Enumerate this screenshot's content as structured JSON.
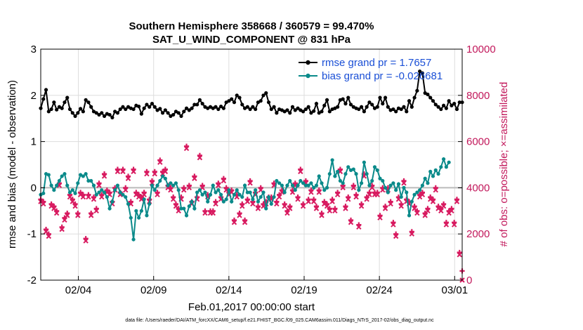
{
  "chart_data": {
    "type": "line",
    "title": "Southern Hemisphere 358668 / 360579 = 99.470%",
    "subtitle": "SAT_U_WIND_COMPONENT @ 831 hPa",
    "xlabel": "Feb.01,2017 00:00:00 start",
    "ylabel": "rmse and bias (model - observation)",
    "ylabel_right": "# of obs: o=possible; ×=assimilated",
    "footer": "data file: /Users/raeder/DAI/ATM_forcXX/CAM6_setup/f.e21.FHIST_BGC.f09_025.CAM6assim.011/Diags_NTrS_2017-02/obs_diag_output.nc",
    "xlim": [
      1,
      29
    ],
    "ylim": [
      -2,
      3
    ],
    "ylim_right": [
      0,
      10000
    ],
    "x_ticks": [
      3.5,
      8.5,
      13.5,
      18.5,
      23.5,
      28.5
    ],
    "x_tick_labels": [
      "02/04",
      "02/09",
      "02/14",
      "02/19",
      "02/24",
      "03/01"
    ],
    "y_ticks": [
      -2,
      -1,
      0,
      1,
      2,
      3
    ],
    "y_tick_labels": [
      "-2",
      "-1",
      "0",
      "1",
      "2",
      "3"
    ],
    "y_right_ticks": [
      0,
      2000,
      4000,
      6000,
      8000,
      10000
    ],
    "y_right_tick_labels": [
      "0",
      "2000",
      "4000",
      "6000",
      "8000",
      "10000"
    ],
    "grid": true,
    "legend_position": "top-right",
    "colors": {
      "rmse": "#000000",
      "bias": "#0a8a8a",
      "obs": "#d81b60",
      "zero": "#bbbbbb",
      "grid": "#dddddd"
    },
    "series": [
      {
        "name": "rmse grand pr = 1.7657",
        "values": [
          1.72,
          1.92,
          2.12,
          1.65,
          1.7,
          1.85,
          1.69,
          1.75,
          1.72,
          1.85,
          1.95,
          1.7,
          1.62,
          1.55,
          1.62,
          1.71,
          1.65,
          1.9,
          1.85,
          1.75,
          1.65,
          1.62,
          1.58,
          1.62,
          1.55,
          1.6,
          1.58,
          1.52,
          1.65,
          1.62,
          1.7,
          1.75,
          1.7,
          1.75,
          1.72,
          1.7,
          1.78,
          1.76,
          1.6,
          1.72,
          1.8,
          1.75,
          1.82,
          1.75,
          1.68,
          1.71,
          1.62,
          1.68,
          1.62,
          1.55,
          1.58,
          1.65,
          1.62,
          1.55,
          1.65,
          1.72,
          1.68,
          1.72,
          1.8,
          1.8,
          1.9,
          1.82,
          1.75,
          1.72,
          1.75,
          1.72,
          1.75,
          1.7,
          1.76,
          1.72,
          1.85,
          1.88,
          1.92,
          1.85,
          2.0,
          1.95,
          1.8,
          1.72,
          1.75,
          1.7,
          1.75,
          1.7,
          1.85,
          1.88,
          2.0,
          2.05,
          1.85,
          1.7,
          1.75,
          1.62,
          1.7,
          1.68,
          1.65,
          1.68,
          1.62,
          1.75,
          1.68,
          1.72,
          1.68,
          1.65,
          1.7,
          1.75,
          1.62,
          1.66,
          1.82,
          1.62,
          1.65,
          1.78,
          1.9,
          1.65,
          1.7,
          1.72,
          1.75,
          1.9,
          1.92,
          1.82,
          1.95,
          1.8,
          1.75,
          1.72,
          1.7,
          1.75,
          1.65,
          1.75,
          1.85,
          1.8,
          1.72,
          1.75,
          1.95,
          1.82,
          1.95,
          1.75,
          1.68,
          1.7,
          1.65,
          1.72,
          1.7,
          1.75,
          1.65,
          1.88,
          1.75,
          1.95,
          2.1,
          2.52,
          2.48,
          2.05,
          2.02,
          1.95,
          1.88,
          1.8,
          1.75,
          1.7,
          1.78,
          1.72,
          1.88,
          1.78,
          1.82,
          1.7,
          1.85,
          1.85
        ]
      },
      {
        "name": "bias grand pr = -0.026681",
        "values": [
          -0.15,
          -0.12,
          0.3,
          0.28,
          0.05,
          -0.05,
          0.05,
          0.15,
          0.25,
          0.3,
          0.05,
          -0.1,
          -0.05,
          -0.12,
          0.1,
          0.28,
          0.25,
          0.3,
          0.15,
          0.15,
          0.05,
          -0.15,
          -0.1,
          -0.05,
          -0.1,
          -0.2,
          -0.45,
          -0.3,
          -0.05,
          0.05,
          -0.1,
          -0.15,
          -0.2,
          -0.35,
          -0.65,
          -1.12,
          -0.5,
          -0.65,
          -0.5,
          -0.25,
          -0.6,
          -0.35,
          0.05,
          -0.05,
          0.05,
          0.15,
          0.25,
          0.2,
          0.05,
          0.1,
          0.05,
          0.1,
          -0.05,
          -0.45,
          -0.45,
          -0.6,
          -0.4,
          -0.3,
          -0.45,
          -0.1,
          -0.05,
          -0.15,
          -0.1,
          -0.3,
          -0.15,
          0.05,
          -0.1,
          -0.05,
          -0.15,
          -0.3,
          -0.25,
          -0.05,
          -0.3,
          -0.15,
          -0.05,
          -0.15,
          -0.2,
          0.05,
          -0.1,
          -0.1,
          -0.25,
          -0.05,
          -0.3,
          -0.2,
          -0.1,
          -0.45,
          -0.2,
          -0.35,
          -0.2,
          0.15,
          0.1,
          0.05,
          -0.1,
          0.05,
          0.15,
          0.05,
          -0.05,
          0.05,
          0.15,
          0.1,
          0.05,
          0.05,
          0.1,
          0.0,
          0.05,
          0.25,
          0.1,
          -0.05,
          0.0,
          0.3,
          0.6,
          0.25,
          0.35,
          0.15,
          0.1,
          0.3,
          0.45,
          0.38,
          0.4,
          0.3,
          -0.05,
          0.1,
          0.55,
          0.3,
          0.05,
          0.15,
          0.45,
          0.38,
          0.2,
          0.15,
          0.0,
          -0.1,
          0.05,
          0.1,
          -0.05,
          0.08,
          -0.2,
          0.0,
          -0.1,
          -0.6,
          -0.3,
          -0.15,
          -0.1,
          -0.05,
          0.05,
          0.2,
          0.1,
          0.35,
          0.25,
          0.38,
          0.3,
          0.45,
          0.62,
          0.45,
          0.55
        ]
      },
      {
        "name": "obs possible",
        "values": [
          3500,
          3400,
          2200,
          2000,
          3300,
          3200,
          3000,
          4200,
          2300,
          2700,
          2900,
          3700,
          3500,
          3300,
          2900,
          3800,
          3700,
          1800,
          3700,
          2900,
          3600,
          3100,
          4200,
          3700,
          4600,
          3900,
          3800,
          3400,
          4000,
          4800,
          3800,
          4800,
          4000,
          4500,
          3400,
          4800,
          3800,
          3700,
          3600,
          3800,
          4700,
          3500,
          4300,
          4700,
          3800,
          5200,
          4700,
          4800,
          4100,
          4000,
          3600,
          3300,
          3100,
          3600,
          4000,
          5800,
          4100,
          3400,
          4500,
          3600,
          5400,
          4100,
          3000,
          3700,
          3000,
          3000,
          3400,
          4200,
          3600,
          4400,
          4000,
          3800,
          3900,
          2600,
          3700,
          2900,
          3300,
          2600,
          3500,
          4300,
          3400,
          3800,
          3200,
          4000,
          3300,
          3400,
          3600,
          3600,
          4200,
          3400,
          3700,
          3900,
          3300,
          3000,
          3200,
          3900,
          4200,
          3600,
          4800,
          3300,
          4300,
          3500,
          3900,
          3500,
          3200,
          3900,
          2900,
          3400,
          3300,
          3100,
          3500,
          3100,
          3800,
          4800,
          4100,
          3200,
          3600,
          2600,
          4100,
          3700,
          2400,
          3300,
          4600,
          3600,
          3800,
          4100,
          3800,
          3800,
          2800,
          4000,
          3200,
          4000,
          3400,
          2500,
          2000,
          3600,
          3300,
          4300,
          3500,
          3400,
          2100,
          3200,
          3000,
          3700,
          3800,
          2900,
          3100,
          3600,
          3500,
          4000,
          3200,
          3100,
          3300,
          2500,
          3000,
          3100,
          2500,
          3500,
          1200,
          400
        ]
      },
      {
        "name": "obs assimilated",
        "values": [
          3400,
          3300,
          2100,
          1900,
          3200,
          3100,
          2900,
          4100,
          2200,
          2600,
          2800,
          3600,
          3400,
          3200,
          2800,
          3700,
          3600,
          1700,
          3600,
          2800,
          3500,
          3000,
          4100,
          3600,
          4500,
          3800,
          3700,
          3300,
          3900,
          4700,
          3700,
          4700,
          3900,
          4400,
          3300,
          4700,
          3700,
          3600,
          3500,
          3700,
          4600,
          3400,
          4200,
          4600,
          3700,
          5100,
          4600,
          4700,
          4000,
          3900,
          3500,
          3200,
          3000,
          3500,
          3900,
          5700,
          4000,
          3300,
          4400,
          3500,
          5300,
          4000,
          2900,
          3600,
          2900,
          2900,
          3300,
          4100,
          3500,
          4300,
          3900,
          3700,
          3800,
          2500,
          3600,
          2800,
          3200,
          2500,
          3400,
          4200,
          3300,
          3700,
          3100,
          3900,
          3200,
          3300,
          3500,
          3500,
          4100,
          3300,
          3600,
          3800,
          3200,
          2900,
          3100,
          3800,
          4100,
          3500,
          4700,
          3200,
          4200,
          3400,
          3800,
          3400,
          3100,
          3800,
          2800,
          3300,
          3200,
          3000,
          3400,
          3000,
          3700,
          4700,
          4000,
          3100,
          3500,
          2500,
          4000,
          3600,
          2300,
          3200,
          4500,
          3500,
          3700,
          4000,
          3700,
          3700,
          2700,
          3900,
          3100,
          3900,
          3300,
          2400,
          1900,
          3500,
          3200,
          4200,
          3400,
          3300,
          2000,
          3100,
          2900,
          3600,
          3700,
          2800,
          3000,
          3500,
          3400,
          3900,
          3100,
          3000,
          3200,
          2400,
          2900,
          3000,
          2400,
          3400,
          1100,
          0
        ]
      }
    ]
  }
}
